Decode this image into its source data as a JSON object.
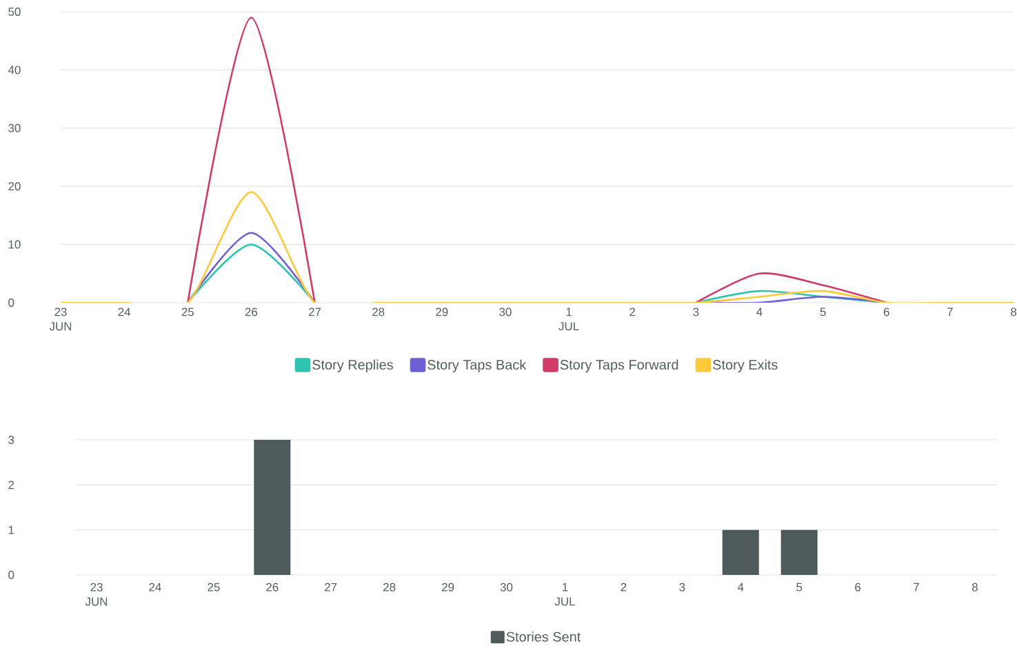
{
  "chart_data": [
    {
      "type": "line",
      "categories": [
        "23 JUN",
        "24",
        "25",
        "26",
        "27",
        "28",
        "29",
        "30",
        "1 JUL",
        "2",
        "3",
        "4",
        "5",
        "6",
        "7",
        "8"
      ],
      "series": [
        {
          "name": "Story Replies",
          "color": "#2ec4b0",
          "values": [
            null,
            null,
            0,
            10,
            0,
            null,
            null,
            null,
            null,
            null,
            0,
            2,
            1,
            0,
            null,
            null
          ]
        },
        {
          "name": "Story Taps Back",
          "color": "#6f5fd4",
          "values": [
            null,
            null,
            0,
            12,
            0,
            null,
            null,
            null,
            null,
            null,
            0,
            0,
            1,
            0,
            null,
            null
          ]
        },
        {
          "name": "Story Taps Forward",
          "color": "#d03a66",
          "values": [
            null,
            null,
            0,
            49,
            0,
            null,
            null,
            null,
            null,
            null,
            0,
            5,
            3,
            0,
            null,
            null
          ]
        },
        {
          "name": "Story Exits",
          "color": "#fdc93a",
          "values": [
            0,
            0,
            0,
            19,
            0,
            0,
            0,
            0,
            0,
            0,
            0,
            1,
            2,
            0,
            0,
            0
          ]
        }
      ],
      "ylim": [
        0,
        50
      ],
      "yticks": [
        0,
        10,
        20,
        30,
        40,
        50
      ],
      "grid": "y",
      "legend": "bottom",
      "marker": "none",
      "line_style": "solid"
    },
    {
      "type": "bar",
      "categories": [
        "23 JUN",
        "24",
        "25",
        "26",
        "27",
        "28",
        "29",
        "30",
        "1 JUL",
        "2",
        "3",
        "4",
        "5",
        "6",
        "7",
        "8"
      ],
      "series": [
        {
          "name": "Stories Sent",
          "color": "#4f5b5b",
          "values": [
            0,
            0,
            0,
            3,
            0,
            0,
            0,
            0,
            0,
            0,
            0,
            1,
            1,
            0,
            0,
            0
          ]
        }
      ],
      "ylim": [
        0,
        3
      ],
      "yticks": [
        0,
        1,
        2,
        3
      ],
      "grid": "y",
      "legend": "bottom"
    }
  ]
}
